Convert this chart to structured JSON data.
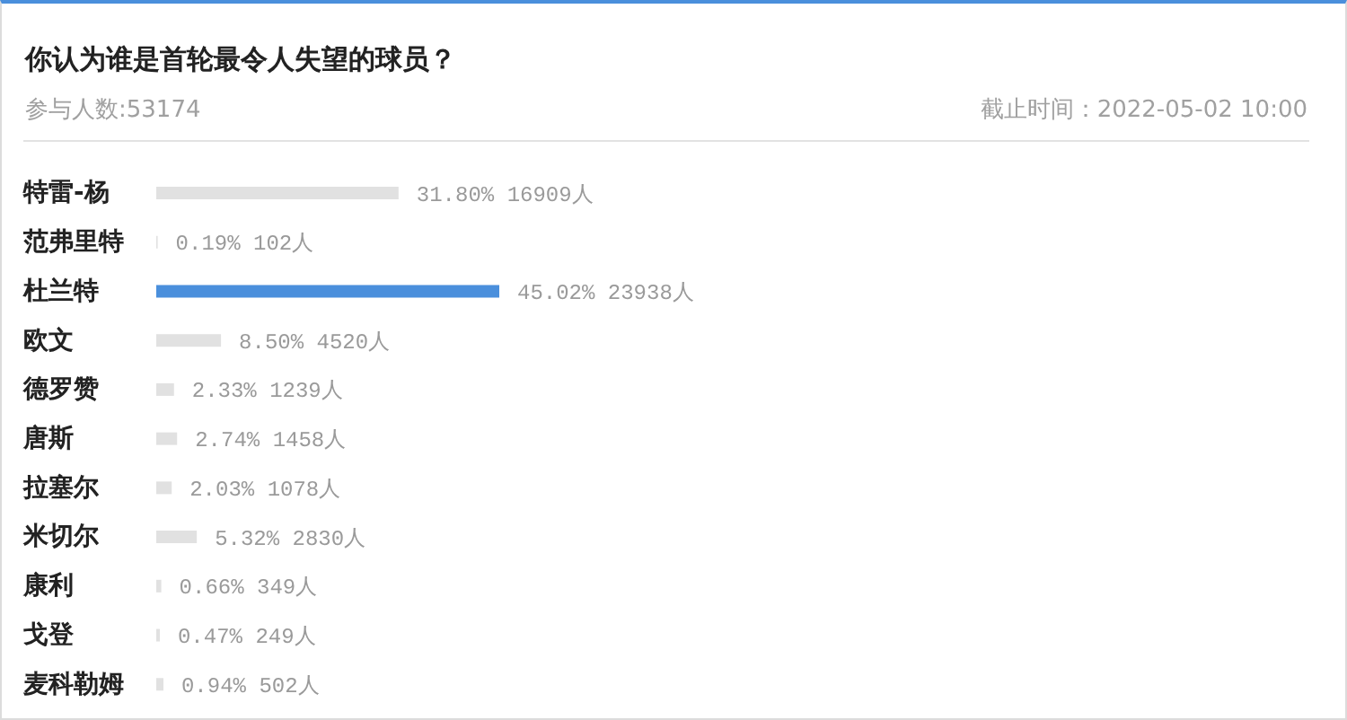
{
  "chart_data": {
    "type": "bar",
    "orientation": "horizontal",
    "title": "你认为谁是首轮最令人失望的球员？",
    "subtitle": "参与人数:53174",
    "annotations": [
      "截止时间：2022-05-02 10:00"
    ],
    "categories": [
      "特雷-杨",
      "范弗里特",
      "杜兰特",
      "欧文",
      "德罗赞",
      "唐斯",
      "拉塞尔",
      "米切尔",
      "康利",
      "戈登",
      "麦科勒姆"
    ],
    "values": [
      31.8,
      0.19,
      45.02,
      8.5,
      2.33,
      2.74,
      2.03,
      5.32,
      0.66,
      0.47,
      0.94
    ],
    "colors": [
      "#e1e1e1",
      "#e1e1e1",
      "#4a8fdc",
      "#e1e1e1",
      "#e1e1e1",
      "#e1e1e1",
      "#e1e1e1",
      "#e1e1e1",
      "#e1e1e1",
      "#e1e1e1",
      "#e1e1e1"
    ],
    "value_labels": [
      "31.80% 16909人",
      "0.19% 102人",
      "45.02% 23938人",
      "8.50% 4520人",
      "2.33% 1239人",
      "2.74% 1458人",
      "2.03% 1078人",
      "5.32% 2830人",
      "0.66% 349人",
      "0.47% 249人",
      "0.94% 502人"
    ],
    "tick_labels": "y"
  }
}
